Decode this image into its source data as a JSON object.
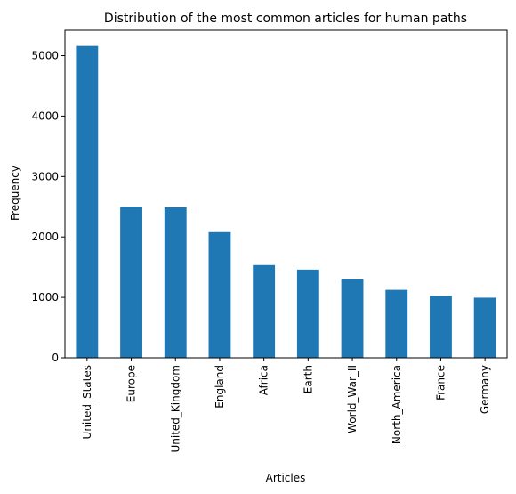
{
  "chart_data": {
    "type": "bar",
    "title": "Distribution of the most common articles for human paths",
    "xlabel": "Articles",
    "ylabel": "Frequency",
    "categories": [
      "United_States",
      "Europe",
      "United_Kingdom",
      "England",
      "Africa",
      "Earth",
      "World_War_II",
      "North_America",
      "France",
      "Germany"
    ],
    "values": [
      5160,
      2500,
      2490,
      2080,
      1535,
      1460,
      1300,
      1125,
      1025,
      995
    ],
    "ylim": [
      0,
      5420
    ],
    "yticks": [
      0,
      1000,
      2000,
      3000,
      4000,
      5000
    ],
    "grid": false,
    "legend": "none",
    "bar_color": "#1f77b4"
  }
}
